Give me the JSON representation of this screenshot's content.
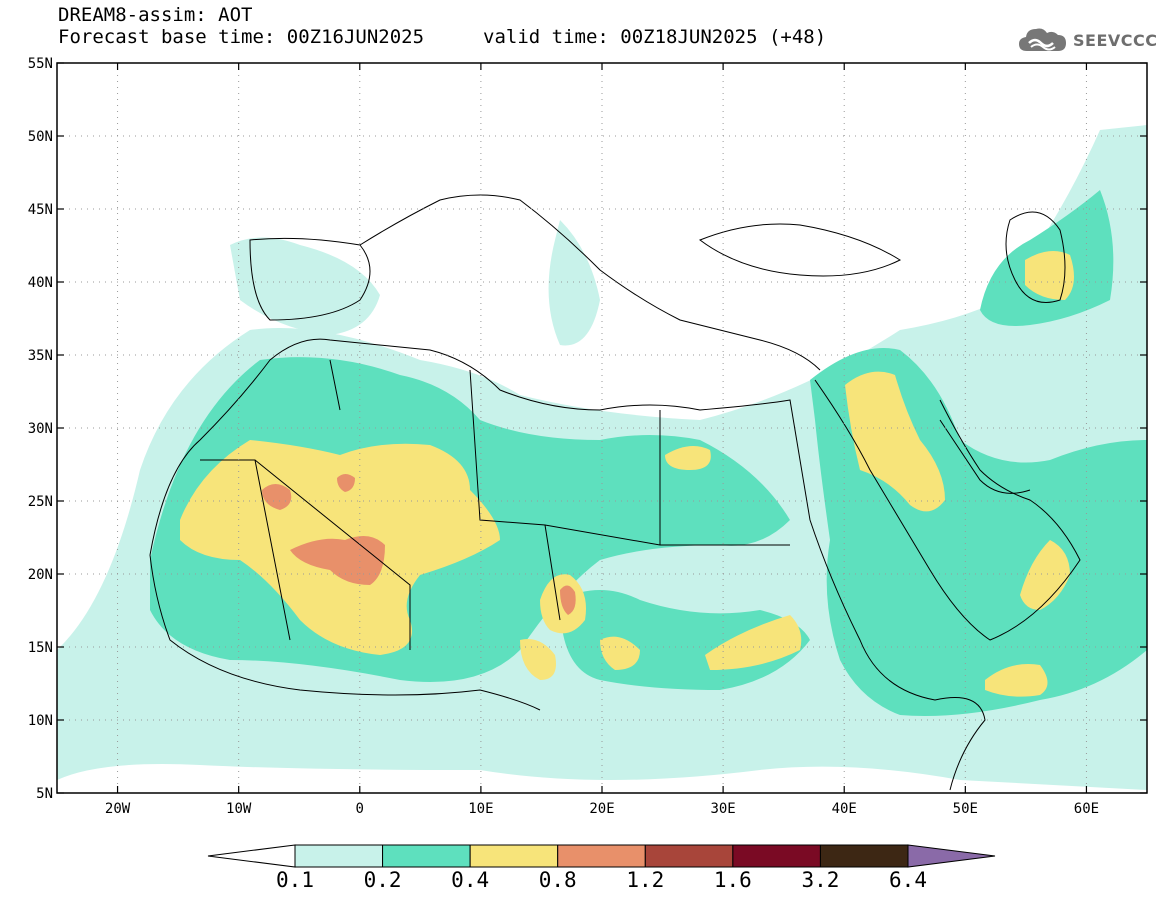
{
  "header": {
    "line1": "DREAM8-assim: AOT",
    "base_time": "Forecast base time: 00Z16JUN2025",
    "valid_time": "valid time: 00Z18JUN2025 (+48)"
  },
  "logo": {
    "text": "SEEVCCC",
    "icon": "cloud-icon"
  },
  "map": {
    "lon_range": [
      -25,
      65
    ],
    "lat_range": [
      5,
      55
    ],
    "lat_ticks": [
      {
        "value": 55,
        "label": "55N"
      },
      {
        "value": 50,
        "label": "50N"
      },
      {
        "value": 45,
        "label": "45N"
      },
      {
        "value": 40,
        "label": "40N"
      },
      {
        "value": 35,
        "label": "35N"
      },
      {
        "value": 30,
        "label": "30N"
      },
      {
        "value": 25,
        "label": "25N"
      },
      {
        "value": 20,
        "label": "20N"
      },
      {
        "value": 15,
        "label": "15N"
      },
      {
        "value": 10,
        "label": "10N"
      },
      {
        "value": 5,
        "label": "5N"
      }
    ],
    "lon_ticks": [
      {
        "value": -20,
        "label": "20W"
      },
      {
        "value": -10,
        "label": "10W"
      },
      {
        "value": 0,
        "label": "0"
      },
      {
        "value": 10,
        "label": "10E"
      },
      {
        "value": 20,
        "label": "20E"
      },
      {
        "value": 30,
        "label": "30E"
      },
      {
        "value": 40,
        "label": "40E"
      },
      {
        "value": 50,
        "label": "50E"
      },
      {
        "value": 60,
        "label": "60E"
      }
    ],
    "grid": "dotted"
  },
  "colorbar": {
    "labels": [
      "0.1",
      "0.2",
      "0.4",
      "0.8",
      "1.2",
      "1.6",
      "3.2",
      "6.4"
    ],
    "colors": [
      "#ffffff",
      "#c8f2ea",
      "#5ee0be",
      "#f7e47a",
      "#e8906a",
      "#a8453a",
      "#7a0a24",
      "#3d2714",
      "#8a6aa8"
    ]
  },
  "colors": {
    "aot_0_1": "#c8f2ea",
    "aot_0_2": "#5ee0be",
    "aot_0_4": "#f7e47a",
    "aot_0_8": "#e8906a",
    "coast": "#000000"
  }
}
